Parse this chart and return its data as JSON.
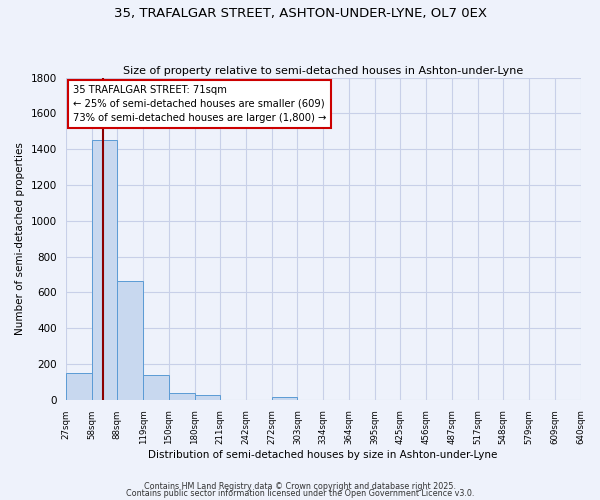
{
  "title": "35, TRAFALGAR STREET, ASHTON-UNDER-LYNE, OL7 0EX",
  "subtitle": "Size of property relative to semi-detached houses in Ashton-under-Lyne",
  "xlabel": "Distribution of semi-detached houses by size in Ashton-under-Lyne",
  "ylabel": "Number of semi-detached properties",
  "bar_edges_labels": [
    "27sqm",
    "58sqm",
    "88sqm",
    "119sqm",
    "150sqm",
    "180sqm",
    "211sqm",
    "242sqm",
    "272sqm",
    "303sqm",
    "334sqm",
    "364sqm",
    "395sqm",
    "425sqm",
    "456sqm",
    "487sqm",
    "517sqm",
    "548sqm",
    "579sqm",
    "609sqm",
    "640sqm"
  ],
  "bar_heights": [
    150,
    1450,
    665,
    140,
    40,
    25,
    0,
    0,
    15,
    0,
    0,
    0,
    0,
    0,
    0,
    0,
    0,
    0,
    0,
    0
  ],
  "bar_color": "#c8d8ef",
  "bar_edge_color": "#5b9bd5",
  "property_bin_index": 1,
  "vline_color": "#8b0000",
  "annotation_line1": "35 TRAFALGAR STREET: 71sqm",
  "annotation_line2": "← 25% of semi-detached houses are smaller (609)",
  "annotation_line3": "73% of semi-detached houses are larger (1,800) →",
  "annotation_box_color": "white",
  "annotation_box_edge": "#cc0000",
  "ylim": [
    0,
    1800
  ],
  "yticks": [
    0,
    200,
    400,
    600,
    800,
    1000,
    1200,
    1400,
    1600,
    1800
  ],
  "footer1": "Contains HM Land Registry data © Crown copyright and database right 2025.",
  "footer2": "Contains public sector information licensed under the Open Government Licence v3.0.",
  "bg_color": "#eef2fb",
  "grid_color": "#c8d0e8"
}
